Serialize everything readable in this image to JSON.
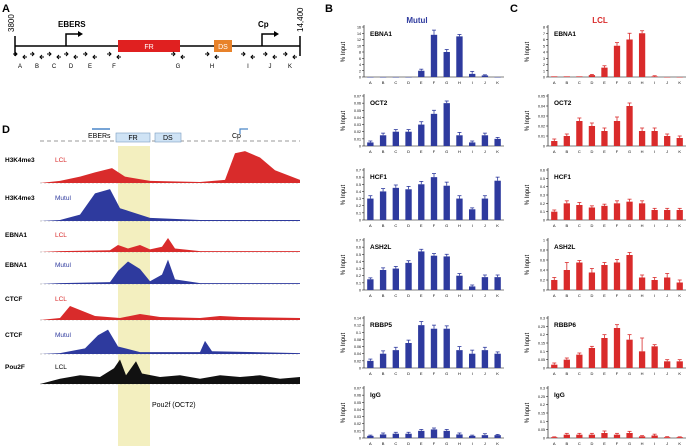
{
  "panel_letters": {
    "a": "A",
    "b": "B",
    "c": "C",
    "d": "D"
  },
  "map": {
    "start": "3800",
    "end": "14,400",
    "ebers_label": "EBERS",
    "cp_label": "Cp",
    "fr_label": "FR",
    "ds_label": "DS",
    "primer_letters": [
      "A",
      "B",
      "C",
      "D",
      "E",
      "F",
      "G",
      "H",
      "I",
      "J",
      "K"
    ]
  },
  "colors": {
    "mutu": "#2e3a9e",
    "lcl": "#d92b2b",
    "fr_box": "#e02020",
    "ds_box": "#e8822a",
    "highlight": "#f3efbf",
    "black_track": "#111111"
  },
  "panel_b": {
    "title": "Mutul"
  },
  "panel_c": {
    "title": "LCL"
  },
  "ylabel": "% Input",
  "panel_d": {
    "header": {
      "ebers": "EBERs",
      "fr": "FR",
      "ds": "DS",
      "cp": "Cp"
    },
    "tracks": [
      {
        "name": "H3K4me3",
        "cell": "LCL",
        "color": "lcl"
      },
      {
        "name": "H3K4me3",
        "cell": "Mutul",
        "color": "mutu"
      },
      {
        "name": "EBNA1",
        "cell": "LCL",
        "color": "lcl"
      },
      {
        "name": "EBNA1",
        "cell": "Mutul",
        "color": "mutu"
      },
      {
        "name": "CTCF",
        "cell": "LCL",
        "color": "lcl"
      },
      {
        "name": "CTCF",
        "cell": "Mutul",
        "color": "mutu"
      },
      {
        "name": "Pou2F",
        "cell": "LCL",
        "color": "black_track"
      }
    ],
    "pou2f_annotation": "Pou2f (OCT2)"
  },
  "chart_data": [
    {
      "panel": "B",
      "type": "bar",
      "title": "EBNA1",
      "categories": [
        "A",
        "B",
        "C",
        "D",
        "E",
        "F",
        "G",
        "H",
        "I",
        "J",
        "K"
      ],
      "values": [
        0,
        0,
        0,
        0,
        2,
        13.5,
        8,
        13,
        1,
        0.5,
        0
      ],
      "errors": [
        0,
        0,
        0,
        0,
        0.5,
        1.5,
        0.8,
        0.6,
        0.8,
        0.2,
        0
      ],
      "ylim": [
        0,
        16
      ],
      "yticks": [
        0,
        2,
        4,
        6,
        8,
        10,
        12,
        14,
        16
      ],
      "color": "mutu"
    },
    {
      "panel": "B",
      "type": "bar",
      "title": "OCT2",
      "categories": [
        "A",
        "B",
        "C",
        "D",
        "E",
        "F",
        "G",
        "H",
        "I",
        "J",
        "K"
      ],
      "values": [
        0.005,
        0.015,
        0.02,
        0.02,
        0.03,
        0.045,
        0.06,
        0.015,
        0.005,
        0.015,
        0.01
      ],
      "errors": [
        0.002,
        0.003,
        0.003,
        0.003,
        0.004,
        0.005,
        0.003,
        0.004,
        0.002,
        0.003,
        0.002
      ],
      "ylim": [
        0,
        0.07
      ],
      "yticks": [
        0,
        0.01,
        0.02,
        0.03,
        0.04,
        0.05,
        0.06,
        0.07
      ],
      "color": "mutu"
    },
    {
      "panel": "B",
      "type": "bar",
      "title": "HCF1",
      "categories": [
        "A",
        "B",
        "C",
        "D",
        "E",
        "F",
        "G",
        "H",
        "I",
        "J",
        "K"
      ],
      "values": [
        0.3,
        0.4,
        0.45,
        0.43,
        0.5,
        0.6,
        0.48,
        0.3,
        0.15,
        0.3,
        0.55
      ],
      "errors": [
        0.04,
        0.04,
        0.04,
        0.04,
        0.04,
        0.05,
        0.05,
        0.04,
        0.02,
        0.04,
        0.05
      ],
      "ylim": [
        0,
        0.7
      ],
      "yticks": [
        0,
        0.1,
        0.2,
        0.3,
        0.4,
        0.5,
        0.6,
        0.7
      ],
      "color": "mutu"
    },
    {
      "panel": "B",
      "type": "bar",
      "title": "ASH2L",
      "categories": [
        "A",
        "B",
        "C",
        "D",
        "E",
        "F",
        "G",
        "H",
        "I",
        "J",
        "K"
      ],
      "values": [
        0.15,
        0.28,
        0.3,
        0.38,
        0.54,
        0.48,
        0.47,
        0.2,
        0.05,
        0.18,
        0.18
      ],
      "errors": [
        0.02,
        0.03,
        0.03,
        0.03,
        0.03,
        0.03,
        0.03,
        0.03,
        0.02,
        0.03,
        0.03
      ],
      "ylim": [
        0,
        0.7
      ],
      "yticks": [
        0,
        0.1,
        0.2,
        0.3,
        0.4,
        0.5,
        0.6,
        0.7
      ],
      "color": "mutu"
    },
    {
      "panel": "B",
      "type": "bar",
      "title": "RBBP5",
      "categories": [
        "A",
        "B",
        "C",
        "D",
        "E",
        "F",
        "G",
        "H",
        "I",
        "J",
        "K"
      ],
      "values": [
        0.02,
        0.04,
        0.05,
        0.07,
        0.12,
        0.11,
        0.11,
        0.05,
        0.04,
        0.05,
        0.04
      ],
      "errors": [
        0.005,
        0.008,
        0.008,
        0.008,
        0.01,
        0.01,
        0.008,
        0.01,
        0.01,
        0.008,
        0.005
      ],
      "ylim": [
        0,
        0.14
      ],
      "yticks": [
        0,
        0.02,
        0.04,
        0.06,
        0.08,
        0.1,
        0.12,
        0.14
      ],
      "color": "mutu"
    },
    {
      "panel": "B",
      "type": "bar",
      "title": "IgG",
      "categories": [
        "A",
        "B",
        "C",
        "D",
        "E",
        "F",
        "G",
        "H",
        "I",
        "J",
        "K"
      ],
      "values": [
        0.003,
        0.005,
        0.006,
        0.006,
        0.01,
        0.012,
        0.01,
        0.005,
        0.003,
        0.004,
        0.004
      ],
      "errors": [
        0.001,
        0.002,
        0.002,
        0.002,
        0.002,
        0.002,
        0.002,
        0.002,
        0.001,
        0.002,
        0.001
      ],
      "ylim": [
        0,
        0.07
      ],
      "yticks": [
        0,
        0.01,
        0.02,
        0.03,
        0.04,
        0.05,
        0.06,
        0.07
      ],
      "color": "mutu"
    },
    {
      "panel": "C",
      "type": "bar",
      "title": "EBNA1",
      "categories": [
        "A",
        "B",
        "C",
        "D",
        "E",
        "F",
        "G",
        "H",
        "I",
        "J",
        "K"
      ],
      "values": [
        0.1,
        0.1,
        0.1,
        0.3,
        1.5,
        5,
        6,
        7,
        0.1,
        0,
        0
      ],
      "errors": [
        0,
        0,
        0,
        0.1,
        0.3,
        0.5,
        1,
        0.4,
        0.1,
        0,
        0
      ],
      "ylim": [
        0,
        8
      ],
      "yticks": [
        0,
        1,
        2,
        3,
        4,
        5,
        6,
        7,
        8
      ],
      "color": "lcl"
    },
    {
      "panel": "C",
      "type": "bar",
      "title": "OCT2",
      "categories": [
        "A",
        "B",
        "C",
        "D",
        "E",
        "F",
        "G",
        "H",
        "I",
        "J",
        "K"
      ],
      "values": [
        0.005,
        0.01,
        0.025,
        0.02,
        0.015,
        0.025,
        0.04,
        0.015,
        0.015,
        0.01,
        0.008
      ],
      "errors": [
        0.002,
        0.002,
        0.003,
        0.003,
        0.003,
        0.004,
        0.003,
        0.003,
        0.003,
        0.002,
        0.002
      ],
      "ylim": [
        0,
        0.05
      ],
      "yticks": [
        0,
        0.01,
        0.02,
        0.03,
        0.04,
        0.05
      ],
      "color": "lcl"
    },
    {
      "panel": "C",
      "type": "bar",
      "title": "HCF1",
      "categories": [
        "A",
        "B",
        "C",
        "D",
        "E",
        "F",
        "G",
        "H",
        "I",
        "J",
        "K"
      ],
      "values": [
        0.1,
        0.2,
        0.18,
        0.15,
        0.17,
        0.2,
        0.22,
        0.2,
        0.12,
        0.12,
        0.12
      ],
      "errors": [
        0.02,
        0.03,
        0.03,
        0.02,
        0.02,
        0.03,
        0.03,
        0.03,
        0.02,
        0.02,
        0.02
      ],
      "ylim": [
        0,
        0.6
      ],
      "yticks": [
        0,
        0.1,
        0.2,
        0.3,
        0.4,
        0.5,
        0.6
      ],
      "color": "lcl"
    },
    {
      "panel": "C",
      "type": "bar",
      "title": "ASH2L",
      "categories": [
        "A",
        "B",
        "C",
        "D",
        "E",
        "F",
        "G",
        "H",
        "I",
        "J",
        "K"
      ],
      "values": [
        0.2,
        0.4,
        0.55,
        0.35,
        0.5,
        0.55,
        0.7,
        0.25,
        0.2,
        0.25,
        0.15
      ],
      "errors": [
        0.05,
        0.15,
        0.04,
        0.08,
        0.05,
        0.06,
        0.05,
        0.05,
        0.05,
        0.08,
        0.05
      ],
      "ylim": [
        0,
        1.0
      ],
      "yticks": [
        0,
        0.2,
        0.4,
        0.6,
        0.8,
        1.0
      ],
      "color": "lcl"
    },
    {
      "panel": "C",
      "type": "bar",
      "title": "RBBP6",
      "categories": [
        "A",
        "B",
        "C",
        "D",
        "E",
        "F",
        "G",
        "H",
        "I",
        "J",
        "K"
      ],
      "values": [
        0.02,
        0.05,
        0.08,
        0.12,
        0.18,
        0.24,
        0.17,
        0.1,
        0.13,
        0.04,
        0.04
      ],
      "errors": [
        0.01,
        0.01,
        0.01,
        0.01,
        0.02,
        0.02,
        0.03,
        0.08,
        0.01,
        0.01,
        0.01
      ],
      "ylim": [
        0,
        0.3
      ],
      "yticks": [
        0,
        0.05,
        0.1,
        0.15,
        0.2,
        0.25,
        0.3
      ],
      "color": "lcl"
    },
    {
      "panel": "C",
      "type": "bar",
      "title": "IgG",
      "categories": [
        "A",
        "B",
        "C",
        "D",
        "E",
        "F",
        "G",
        "H",
        "I",
        "J",
        "K"
      ],
      "values": [
        0.005,
        0.02,
        0.02,
        0.02,
        0.03,
        0.02,
        0.03,
        0.01,
        0.015,
        0.005,
        0.005
      ],
      "errors": [
        0.002,
        0.008,
        0.008,
        0.008,
        0.012,
        0.008,
        0.01,
        0.004,
        0.008,
        0.003,
        0.002
      ],
      "ylim": [
        0,
        0.3
      ],
      "yticks": [
        0,
        0.05,
        0.1,
        0.15,
        0.2,
        0.25,
        0.3
      ],
      "color": "lcl"
    }
  ]
}
